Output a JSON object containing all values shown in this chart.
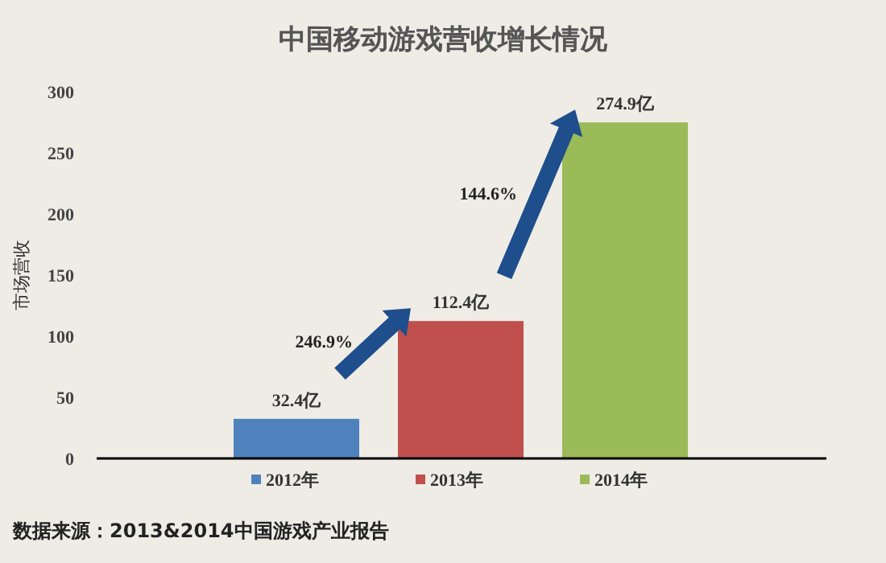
{
  "chart_data": {
    "type": "bar",
    "title": "中国移动游戏营收增长情况",
    "ylabel": "市场营收",
    "categories": [
      null,
      null,
      null
    ],
    "series": [
      {
        "name": "2012年",
        "color": "#4f81bd",
        "values": [
          32.4,
          null,
          null
        ],
        "value_labels": [
          "32.4亿",
          null,
          null
        ]
      },
      {
        "name": "2013年",
        "color": "#c0504d",
        "values": [
          null,
          112.4,
          null
        ],
        "value_labels": [
          null,
          "112.4亿",
          null
        ]
      },
      {
        "name": "2014年",
        "color": "#9bbb59",
        "values": [
          null,
          null,
          274.9
        ],
        "value_labels": [
          null,
          null,
          "274.9亿"
        ]
      }
    ],
    "ylim": [
      0,
      300
    ],
    "yticks": [
      0,
      50,
      100,
      150,
      200,
      250,
      300
    ],
    "legend": "bottom",
    "annotations": [
      "246.9%",
      "144.6%",
      "数据来源：2013&2014中国游戏产业报告"
    ]
  }
}
